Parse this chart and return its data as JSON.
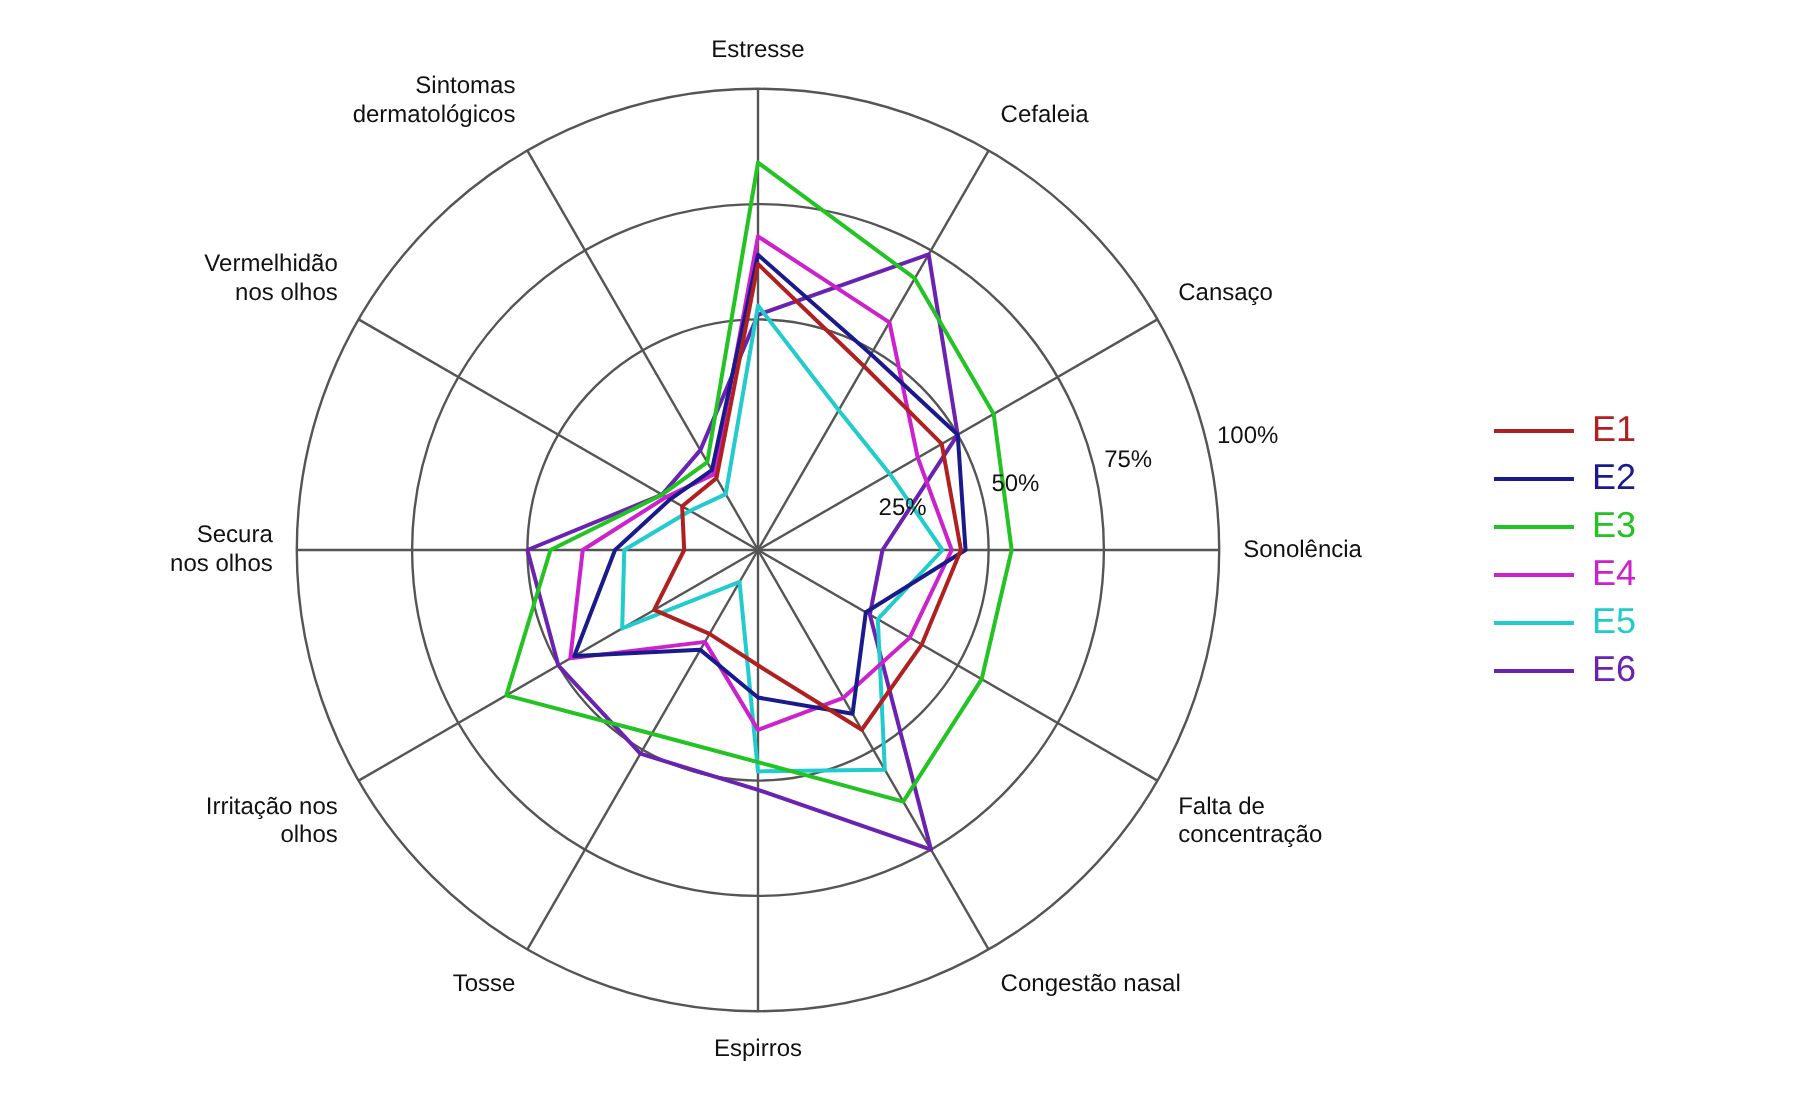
{
  "chart_data": {
    "type": "radar",
    "categories": [
      "Estresse",
      "Cefaleia",
      "Cansaço",
      "Sonolência",
      "Falta de\nconcentração",
      "Congestão nasal",
      "Espirros",
      "Tosse",
      "Irritação nos\nolhos",
      "Secura\nnos olhos",
      "Vermelhidão\nnos olhos",
      "Sintomas\ndermatológicos"
    ],
    "ylim": [
      0,
      100
    ],
    "yticks": [
      {
        "value": 25,
        "label": "25%"
      },
      {
        "value": 50,
        "label": "50%"
      },
      {
        "value": 75,
        "label": "75%"
      },
      {
        "value": 100,
        "label": "100%"
      }
    ],
    "grid": true,
    "legend": "right",
    "marker": "none",
    "line_style": "solid",
    "series": [
      {
        "name": "E1",
        "color": "#b02020",
        "values": [
          62,
          46,
          46,
          44,
          41,
          45,
          25,
          21,
          26,
          16,
          19,
          18
        ]
      },
      {
        "name": "E2",
        "color": "#1a1a8c",
        "values": [
          64,
          49,
          50,
          45,
          27,
          41,
          32,
          25,
          46,
          31,
          22,
          20
        ]
      },
      {
        "name": "E3",
        "color": "#22c322",
        "values": [
          84,
          68,
          59,
          55,
          56,
          63,
          46,
          46,
          63,
          45,
          24,
          22
        ]
      },
      {
        "name": "E4",
        "color": "#cc22cc",
        "values": [
          68,
          57,
          40,
          42,
          38,
          37,
          39,
          23,
          47,
          38,
          23,
          19
        ]
      },
      {
        "name": "E5",
        "color": "#22cccc",
        "values": [
          53,
          35,
          33,
          40,
          30,
          55,
          48,
          8,
          34,
          29,
          17,
          14
        ]
      },
      {
        "name": "E6",
        "color": "#6a22b0",
        "values": [
          51,
          74,
          50,
          27,
          28,
          75,
          52,
          51,
          50,
          50,
          24,
          25
        ]
      }
    ]
  }
}
